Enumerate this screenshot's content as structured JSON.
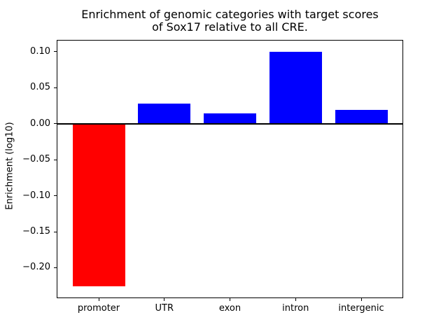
{
  "chart_data": {
    "type": "bar",
    "title": "Enrichment of genomic categories with target scores\nof Sox17 relative to all CRE.",
    "title_line1": "Enrichment of genomic categories with target scores",
    "title_line2": "of Sox17 relative to all CRE.",
    "xlabel": "",
    "ylabel": "Enrichment (log10)",
    "categories": [
      "promoter",
      "UTR",
      "exon",
      "intron",
      "intergenic"
    ],
    "values": [
      -0.226,
      0.028,
      0.014,
      0.1,
      0.019
    ],
    "bar_colors": [
      "#ff0000",
      "#0000ff",
      "#0000ff",
      "#0000ff",
      "#0000ff"
    ],
    "bar_width": 0.8,
    "ylim": [
      -0.2423,
      0.1163
    ],
    "xlim": [
      -0.64,
      4.64
    ],
    "yticks": [
      0.1,
      0.05,
      0.0,
      -0.05,
      -0.1,
      -0.15,
      -0.2
    ],
    "ytick_labels": [
      "0.10",
      "0.05",
      "0.00",
      "−0.05",
      "−0.10",
      "−0.15",
      "−0.20"
    ],
    "zero_line": true,
    "grid": false,
    "legend": null,
    "background": "#ffffff",
    "axis_color": "#000000"
  }
}
